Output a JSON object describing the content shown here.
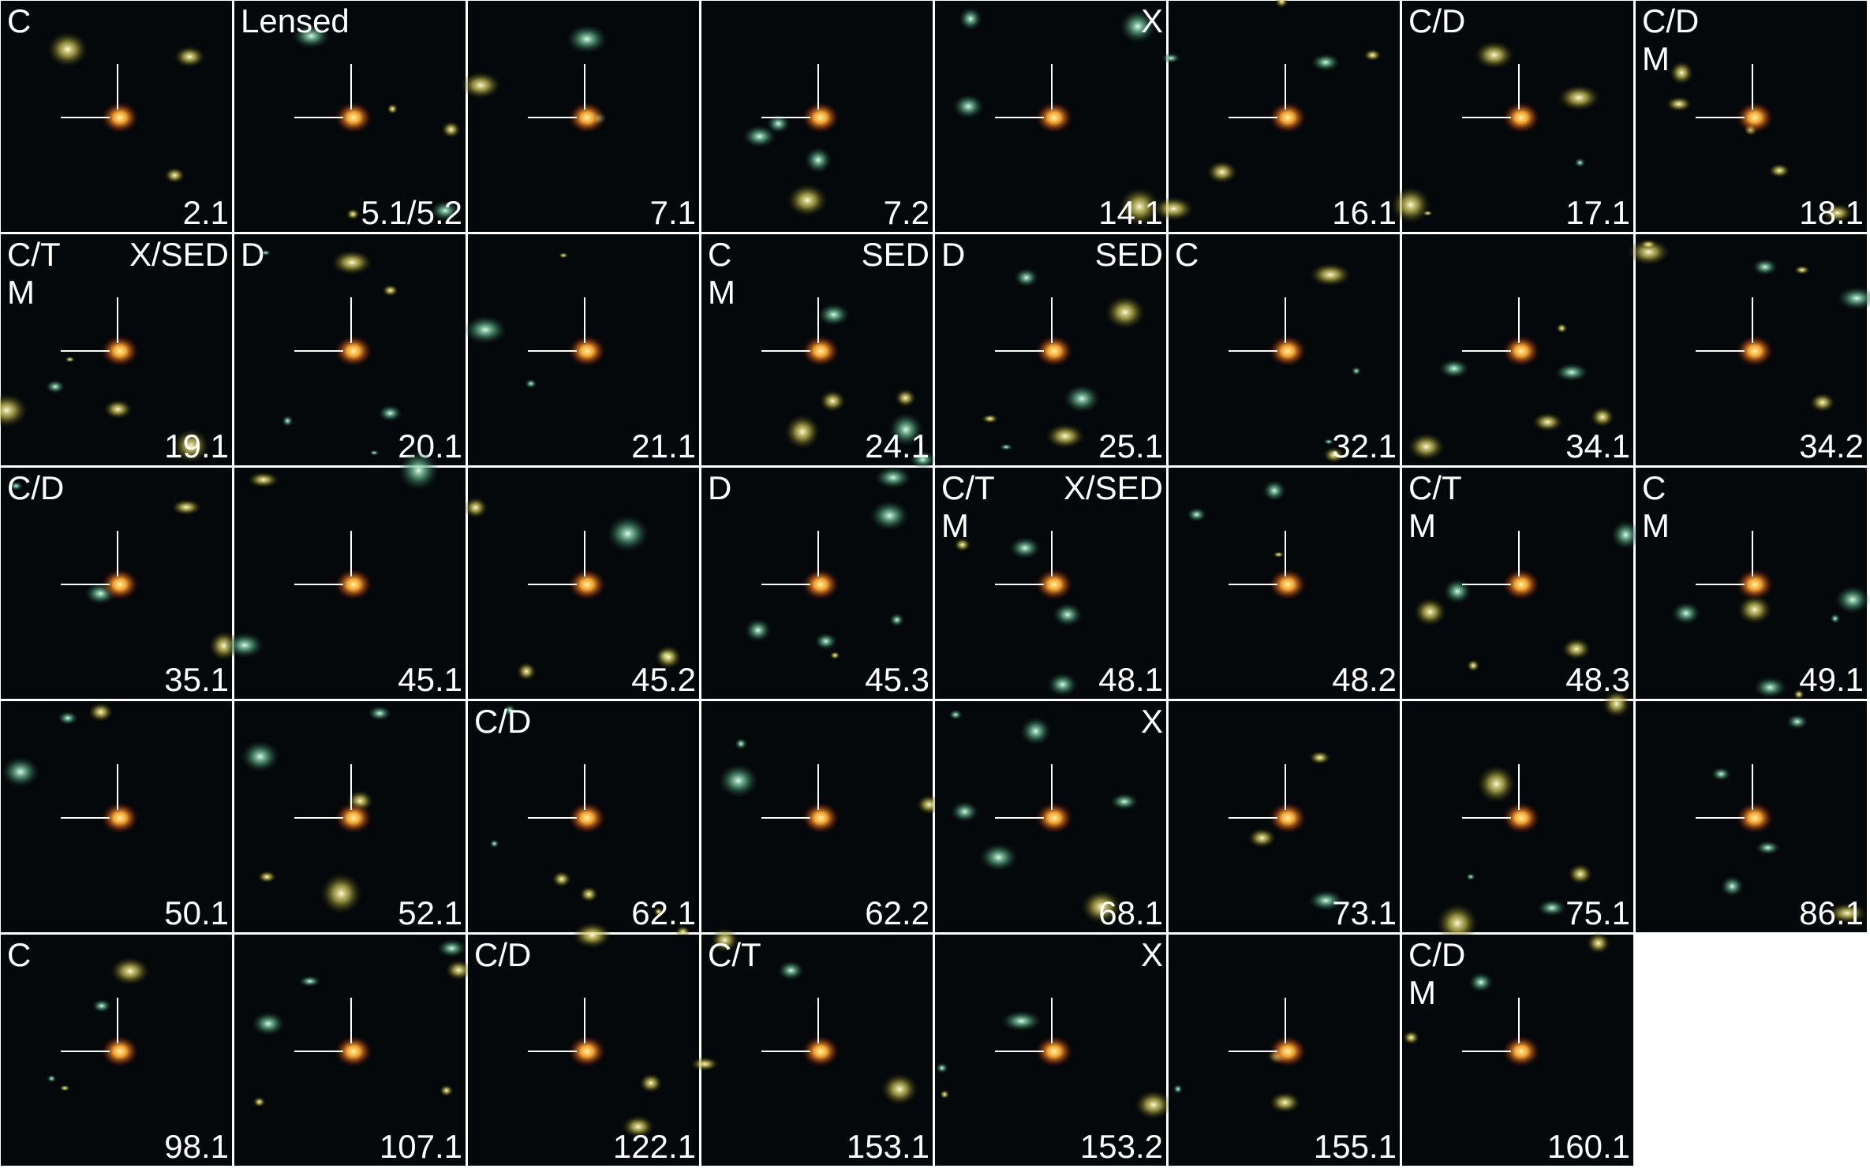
{
  "panels": [
    {
      "class": "C",
      "id": "2.1"
    },
    {
      "class": "Lensed",
      "id": "5.1/5.2"
    },
    {
      "id": "7.1"
    },
    {
      "id": "7.2"
    },
    {
      "flag": "X",
      "id": "14.1"
    },
    {
      "id": "16.1"
    },
    {
      "class": "C/D",
      "id": "17.1"
    },
    {
      "class": "C/D",
      "merger": "M",
      "id": "18.1"
    },
    {
      "class": "C/T",
      "merger": "M",
      "flag": "X/SED",
      "id": "19.1"
    },
    {
      "class": "D",
      "id": "20.1"
    },
    {
      "id": "21.1"
    },
    {
      "class": "C",
      "merger": "M",
      "flag": "SED",
      "id": "24.1"
    },
    {
      "class": "D",
      "flag": "SED",
      "id": "25.1"
    },
    {
      "class": "C",
      "id": "32.1"
    },
    {
      "id": "34.1"
    },
    {
      "id": "34.2"
    },
    {
      "class": "C/D",
      "id": "35.1"
    },
    {
      "id": "45.1"
    },
    {
      "id": "45.2"
    },
    {
      "class": "D",
      "id": "45.3"
    },
    {
      "class": "C/T",
      "merger": "M",
      "flag": "X/SED",
      "id": "48.1"
    },
    {
      "id": "48.2"
    },
    {
      "class": "C/T",
      "merger": "M",
      "id": "48.3"
    },
    {
      "class": "C",
      "merger": "M",
      "id": "49.1"
    },
    {
      "id": "50.1"
    },
    {
      "id": "52.1"
    },
    {
      "class": "C/D",
      "id": "62.1"
    },
    {
      "id": "62.2"
    },
    {
      "flag": "X",
      "id": "68.1"
    },
    {
      "id": "73.1"
    },
    {
      "id": "75.1"
    },
    {
      "id": "86.1"
    },
    {
      "class": "C",
      "id": "98.1"
    },
    {
      "id": "107.1"
    },
    {
      "class": "C/D",
      "id": "122.1"
    },
    {
      "class": "C/T",
      "id": "153.1"
    },
    {
      "flag": "X",
      "id": "153.2"
    },
    {
      "id": "155.1"
    },
    {
      "class": "C/D",
      "merger": "M",
      "id": "160.1"
    }
  ]
}
